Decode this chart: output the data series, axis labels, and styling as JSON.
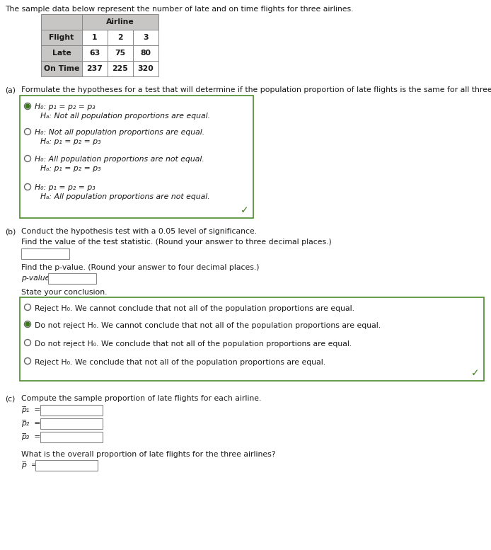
{
  "title_text": "The sample data below represent the number of late and on time flights for three airlines.",
  "table_header_bg": "#c8c6c4",
  "table_cell_bg": "#ffffff",
  "table_border": "#888888",
  "table_col_labels": [
    "Flight",
    "1",
    "2",
    "3"
  ],
  "table_row2": [
    "Late",
    "63",
    "75",
    "80"
  ],
  "table_row3": [
    "On Time",
    "237",
    "225",
    "320"
  ],
  "airline_label": "Airline",
  "part_a_label": "(a)   Formulate the hypotheses for a test that will determine if the population proportion of late flights is the same for all three airlines.",
  "options_a_line1": [
    "H₀: p₁ = p₂ = p₃",
    "H₀: Not all population proportions are equal.",
    "H₀: All population proportions are not equal.",
    "H₀: p₁ = p₂ = p₃"
  ],
  "options_a_line2": [
    "Hₐ: Not all population proportions are equal.",
    "Hₐ: p₁ = p₂ = p₃",
    "Hₐ: p₁ = p₂ = p₃",
    "Hₐ: All population proportions are not equal."
  ],
  "options_a_selected": [
    true,
    false,
    false,
    false
  ],
  "part_b_label": "(b)   Conduct the hypothesis test with a 0.05 level of significance.",
  "find_test_stat": "Find the value of the test statistic. (Round your answer to three decimal places.)",
  "find_pvalue": "Find the p-value. (Round your answer to four decimal places.)",
  "pvalue_label": "p-value =",
  "state_conclusion": "State your conclusion.",
  "options_b_line": [
    "Reject H₀. We cannot conclude that not all of the population proportions are equal.",
    "Do not reject H₀. We cannot conclude that not all of the population proportions are equal.",
    "Do not reject H₀. We conclude that not all of the population proportions are equal.",
    "Reject H₀. We conclude that not all of the population proportions are equal."
  ],
  "options_b_selected": [
    false,
    true,
    false,
    false
  ],
  "part_c_label": "(c)   Compute the sample proportion of late flights for each airline.",
  "p1_label": "p̅₁  =",
  "p2_label": "p̅₂  =",
  "p3_label": "p̅₃  =",
  "overall_label": "What is the overall proportion of late flights for the three airlines?",
  "p_bar_label": "p̅  =",
  "text_color": "#1a1a1a",
  "green_color": "#3a7a1a",
  "box_border_green": "#4a8a2a",
  "italic_color": "#006600",
  "dark_red_text": "#8b0000",
  "bg_color": "#ffffff"
}
